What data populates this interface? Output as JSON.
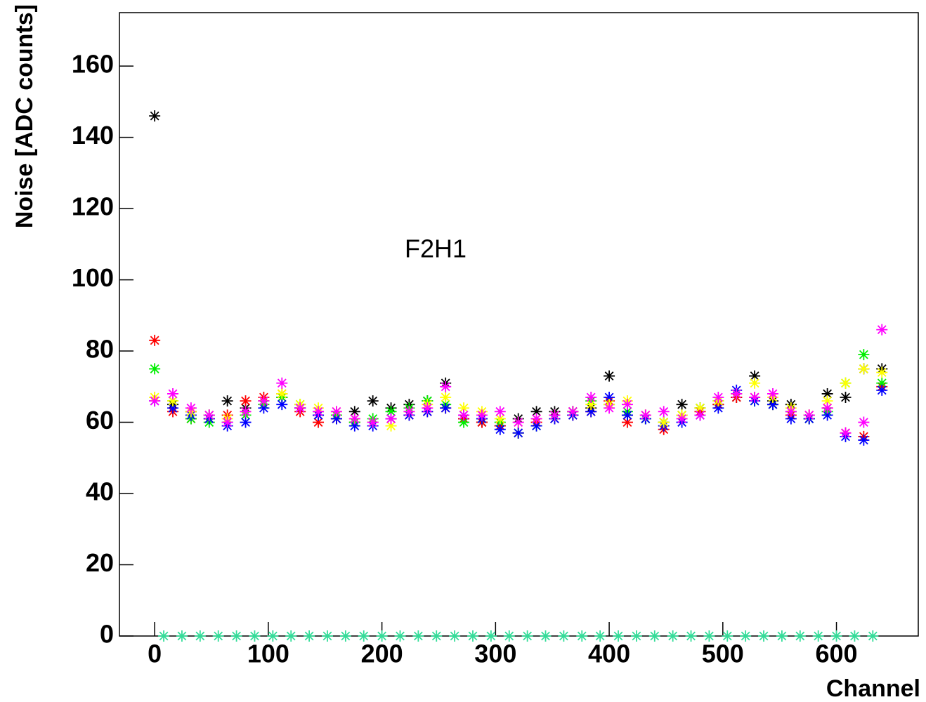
{
  "chart_data": {
    "type": "scatter",
    "annotation": "F2H1",
    "xlabel": "Channel",
    "ylabel": "Noise [ADC counts]",
    "xlim": [
      -31,
      672
    ],
    "ylim": [
      0,
      175
    ],
    "xticks": [
      0,
      100,
      200,
      300,
      400,
      500,
      600
    ],
    "yticks": [
      0,
      20,
      40,
      60,
      80,
      100,
      120,
      140,
      160
    ],
    "x": [
      0,
      16,
      32,
      48,
      64,
      80,
      96,
      112,
      128,
      144,
      160,
      176,
      192,
      208,
      224,
      240,
      256,
      272,
      288,
      304,
      320,
      336,
      352,
      368,
      384,
      400,
      416,
      432,
      448,
      464,
      480,
      496,
      512,
      528,
      544,
      560,
      576,
      592,
      608,
      624,
      640
    ],
    "series": [
      {
        "color": "#000000",
        "values": [
          146,
          65,
          63,
          62,
          66,
          64,
          66,
          67,
          64,
          62,
          61,
          63,
          66,
          64,
          65,
          66,
          71,
          61,
          60,
          59,
          61,
          63,
          63,
          63,
          64,
          73,
          62,
          61,
          60,
          65,
          64,
          65,
          67,
          73,
          66,
          65,
          61,
          68,
          67,
          75,
          75
        ]
      },
      {
        "color": "#ff0000",
        "values": [
          83,
          63,
          61,
          61,
          62,
          66,
          67,
          68,
          63,
          60,
          61,
          60,
          60,
          61,
          62,
          63,
          64,
          61,
          60,
          59,
          57,
          60,
          61,
          62,
          63,
          66,
          60,
          62,
          58,
          62,
          63,
          65,
          67,
          67,
          65,
          62,
          62,
          64,
          57,
          56,
          70
        ]
      },
      {
        "color": "#00ee00",
        "values": [
          75,
          66,
          61,
          60,
          60,
          62,
          65,
          67,
          65,
          63,
          62,
          60,
          61,
          63,
          64,
          66,
          65,
          60,
          61,
          60,
          57,
          59,
          62,
          63,
          66,
          65,
          63,
          61,
          60,
          62,
          64,
          66,
          68,
          66,
          65,
          63,
          61,
          63,
          71,
          79,
          71
        ]
      },
      {
        "color": "#0000ff",
        "values": [
          66,
          64,
          62,
          61,
          59,
          60,
          64,
          65,
          64,
          62,
          61,
          59,
          59,
          61,
          62,
          63,
          64,
          62,
          61,
          58,
          57,
          59,
          61,
          62,
          63,
          67,
          62,
          61,
          59,
          60,
          62,
          64,
          69,
          66,
          65,
          61,
          61,
          62,
          56,
          55,
          69
        ]
      },
      {
        "color": "#ffff00",
        "values": [
          67,
          66,
          63,
          62,
          61,
          63,
          66,
          68,
          65,
          64,
          63,
          61,
          60,
          59,
          63,
          65,
          67,
          64,
          63,
          61,
          60,
          61,
          62,
          63,
          65,
          65,
          66,
          62,
          60,
          62,
          64,
          66,
          68,
          71,
          67,
          64,
          62,
          66,
          71,
          75,
          74
        ]
      },
      {
        "color": "#ff00ff",
        "values": [
          66,
          68,
          64,
          62,
          60,
          63,
          66,
          71,
          64,
          63,
          63,
          61,
          60,
          61,
          63,
          64,
          70,
          62,
          62,
          63,
          60,
          61,
          62,
          63,
          67,
          64,
          65,
          62,
          63,
          61,
          62,
          67,
          68,
          67,
          68,
          63,
          62,
          64,
          57,
          60,
          86
        ]
      },
      {
        "color": "#33dd99",
        "x": [
          8,
          24,
          40,
          56,
          72,
          88,
          104,
          120,
          136,
          152,
          168,
          184,
          200,
          216,
          232,
          248,
          264,
          280,
          296,
          312,
          328,
          344,
          360,
          376,
          392,
          408,
          424,
          440,
          456,
          472,
          488,
          504,
          520,
          536,
          552,
          568,
          584,
          600,
          616,
          632
        ],
        "values": [
          0,
          0,
          0,
          0,
          0,
          0,
          0,
          0,
          0,
          0,
          0,
          0,
          0,
          0,
          0,
          0,
          0,
          0,
          0,
          0,
          0,
          0,
          0,
          0,
          0,
          0,
          0,
          0,
          0,
          0,
          0,
          0,
          0,
          0,
          0,
          0,
          0,
          0,
          0,
          0
        ]
      }
    ]
  }
}
